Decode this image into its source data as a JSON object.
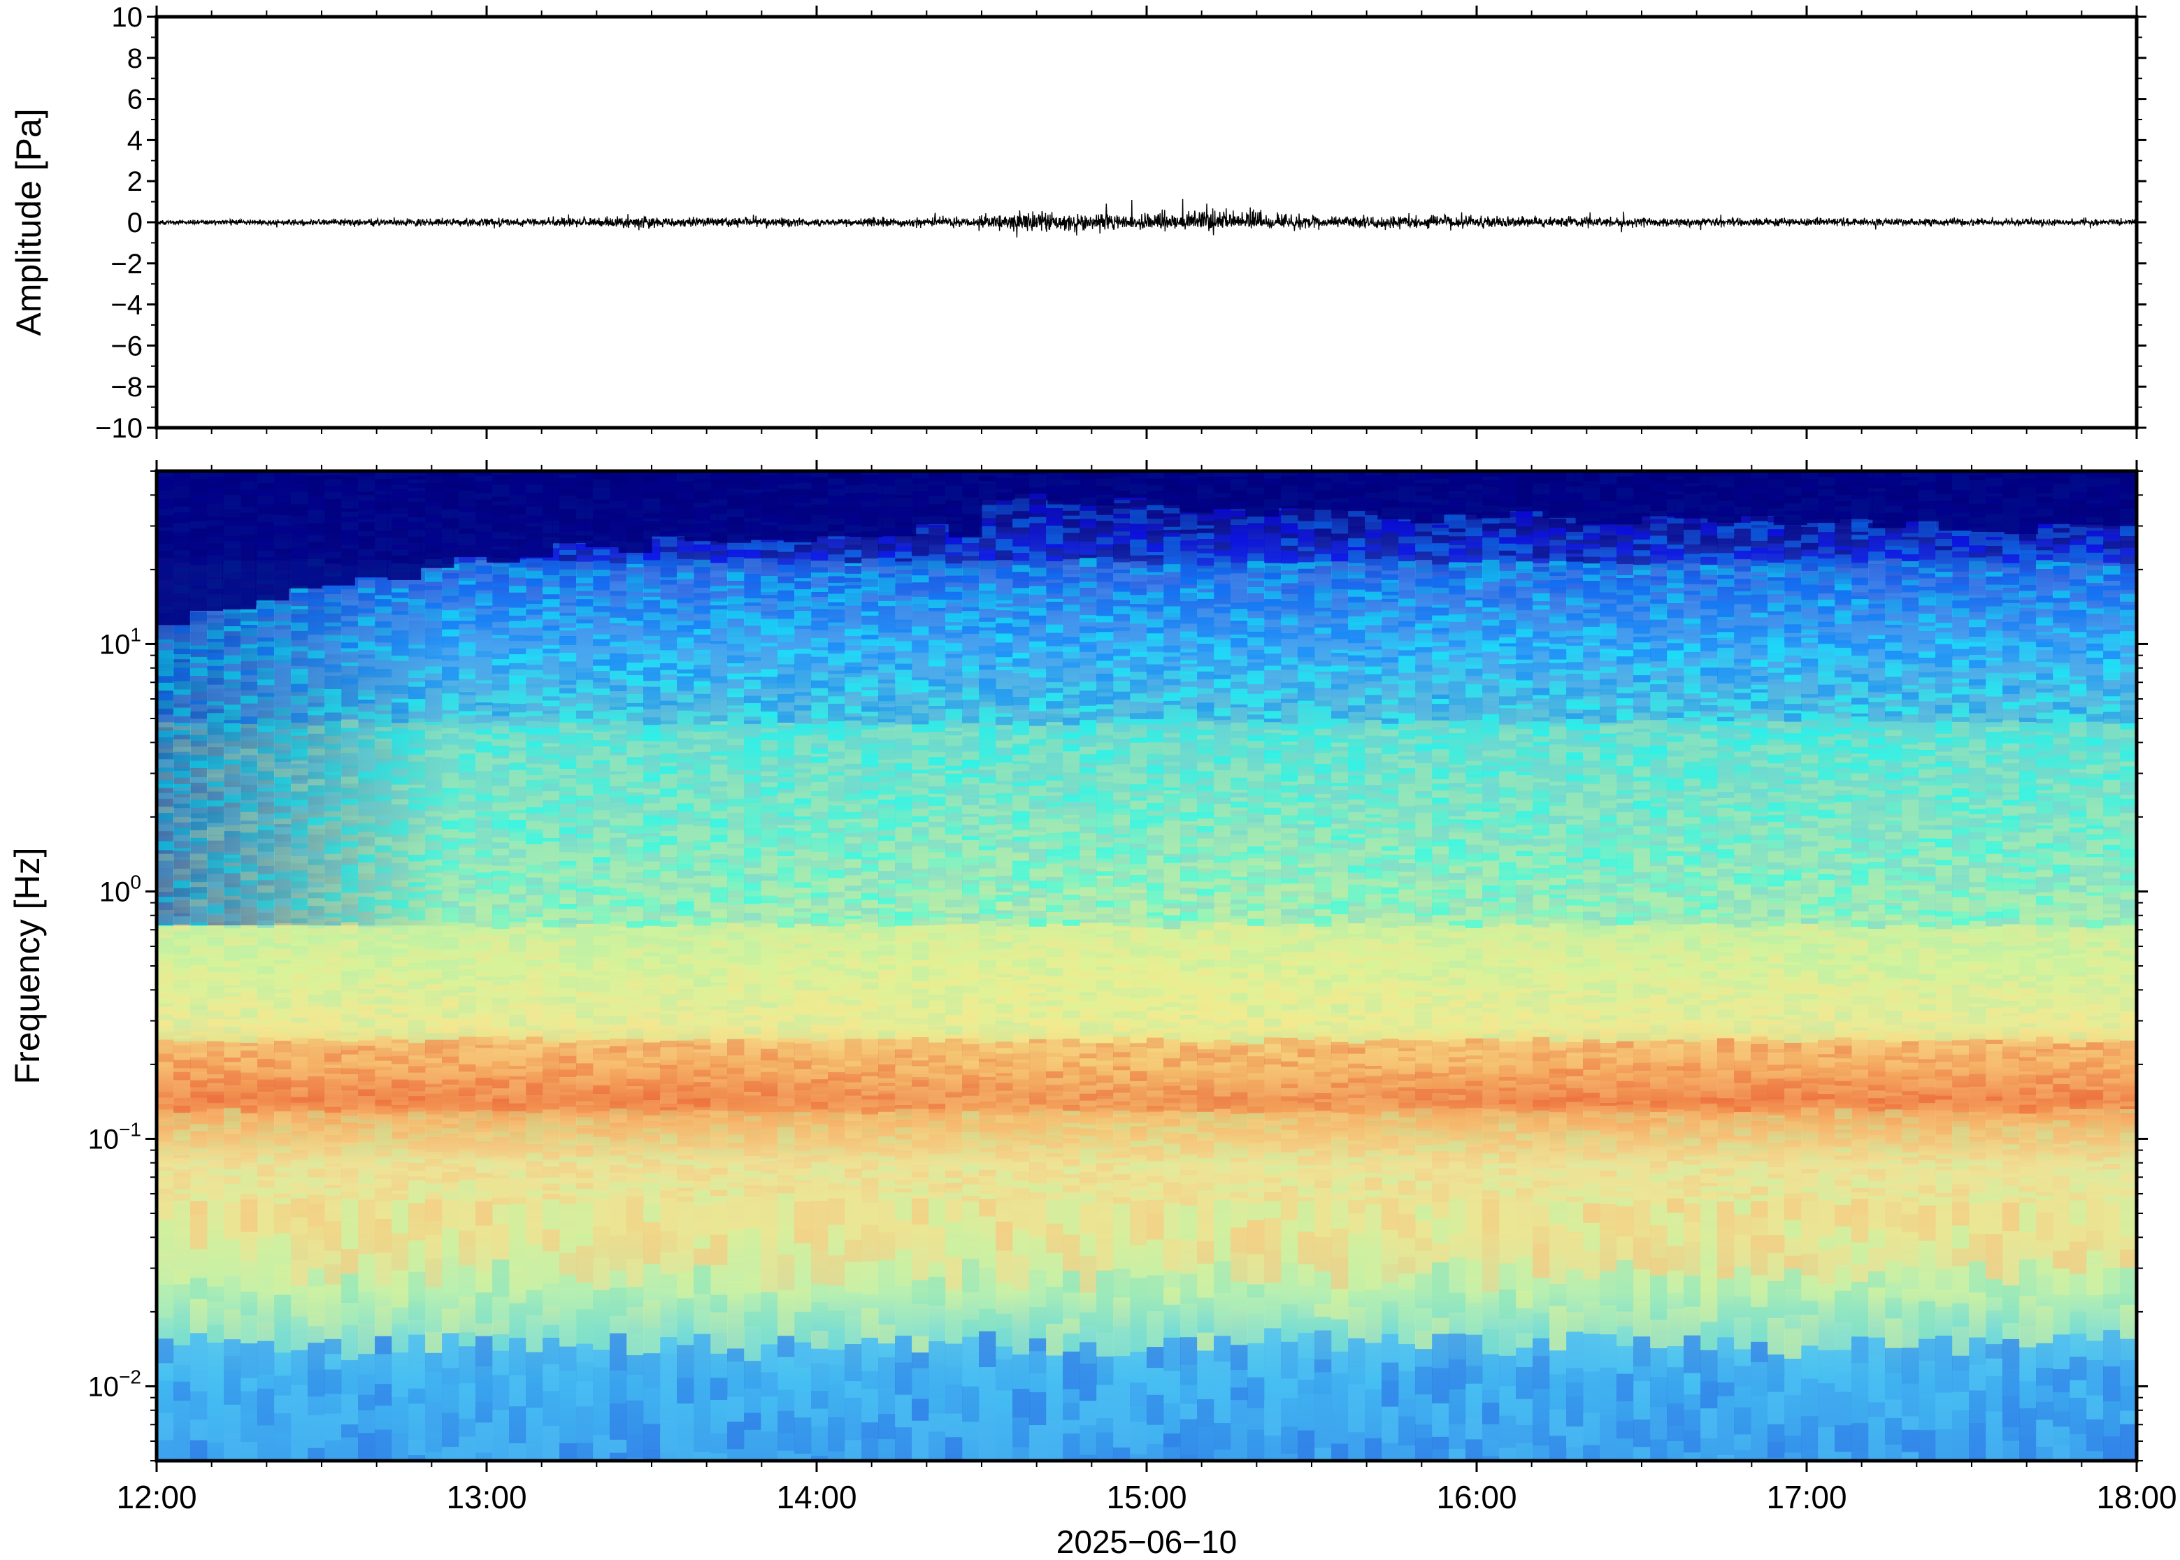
{
  "chart_data": [
    {
      "type": "line",
      "panel": "waveform",
      "ylabel": "Amplitude [Pa]",
      "ylim": [
        -10,
        10
      ],
      "yticks": [
        10,
        8,
        6,
        4,
        2,
        0,
        -2,
        -4,
        -6,
        -8,
        -10
      ],
      "ytick_labels": [
        "10",
        "8",
        "6",
        "4",
        "2",
        "0",
        "−2",
        "−4",
        "−6",
        "−8",
        "−10"
      ],
      "xlim": [
        "12:00",
        "18:00"
      ],
      "line_color": "#000000",
      "series": [
        {
          "x": [
            "12:00",
            "12:30",
            "13:00",
            "13:30",
            "14:00",
            "14:30",
            "14:36",
            "15:00",
            "15:15",
            "15:30",
            "16:00",
            "16:30",
            "17:00",
            "17:30",
            "18:00"
          ],
          "envelope_max": [
            0.3,
            0.35,
            0.5,
            0.6,
            0.5,
            0.6,
            1.3,
            1.1,
            1.6,
            1.0,
            0.7,
            0.5,
            0.5,
            0.45,
            0.35
          ],
          "envelope_min": [
            -0.3,
            -0.35,
            -0.5,
            -0.6,
            -0.5,
            -0.6,
            -1.1,
            -0.8,
            -0.7,
            -0.7,
            -0.6,
            -0.5,
            -0.45,
            -0.4,
            -0.35
          ]
        }
      ]
    },
    {
      "type": "heatmap",
      "panel": "spectrogram",
      "ylabel": "Frequency [Hz]",
      "yscale": "log",
      "ylim": [
        0.005,
        50
      ],
      "yticks": [
        10,
        1,
        0.1,
        0.01
      ],
      "ytick_labels": [
        {
          "base": "10",
          "exp": "1"
        },
        {
          "base": "10",
          "exp": "0"
        },
        {
          "base": "10",
          "exp": "−1"
        },
        {
          "base": "10",
          "exp": "−2"
        }
      ],
      "xlabel": "2025−06−10",
      "xlim": [
        "12:00",
        "18:00"
      ],
      "xtick_labels": [
        "12:00",
        "13:00",
        "14:00",
        "15:00",
        "16:00",
        "17:00",
        "18:00"
      ],
      "colormap": "jet",
      "colormap_stops": [
        "#00007f",
        "#0000ff",
        "#0080ff",
        "#00ffff",
        "#80ff80",
        "#ffff00",
        "#ff8000",
        "#ff0000"
      ],
      "dominant_band_hz": [
        0.14,
        0.22
      ],
      "grid": false
    }
  ]
}
